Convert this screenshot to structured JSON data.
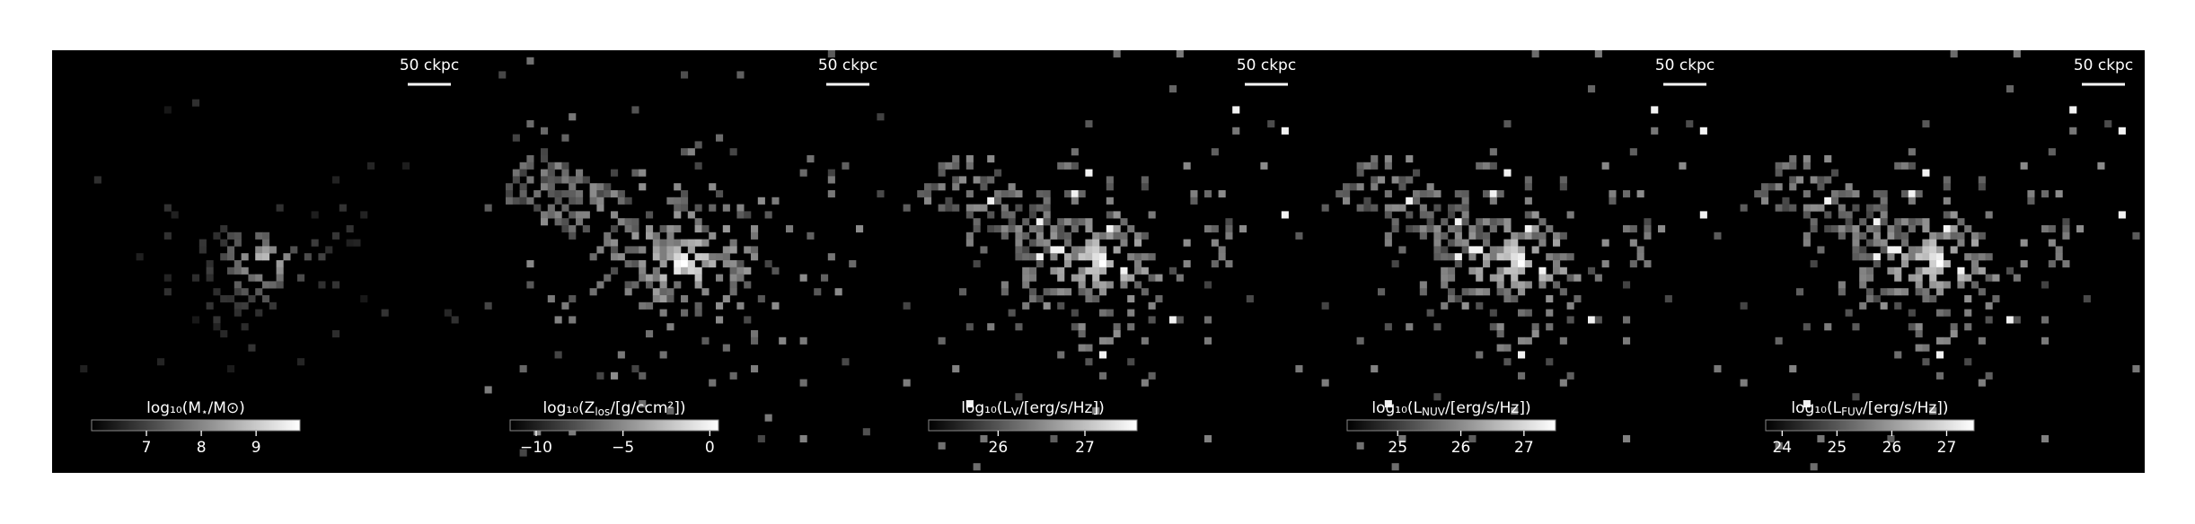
{
  "chart_data": [
    {
      "type": "image",
      "scale_label": "50 ckpc",
      "colorbar_label": {
        "text": "log₁₀(M",
        "sub": "⋆",
        "tail": "/M⊙)"
      },
      "clim": [
        6.0,
        9.8
      ],
      "cticks": [
        7,
        8,
        9
      ],
      "stream": false
    },
    {
      "type": "image",
      "scale_label": "50 ckpc",
      "colorbar_label": {
        "text": "log₁₀(Z",
        "sub": "los",
        "tail": "/[g/ccm²])"
      },
      "clim": [
        -11.5,
        0.5
      ],
      "cticks": [
        {
          "value": -10,
          "label": "−10"
        },
        {
          "value": -5,
          "label": "−5"
        },
        0
      ],
      "stream": true
    },
    {
      "type": "image",
      "scale_label": "50 ckpc",
      "colorbar_label": {
        "text": "log₁₀(L",
        "sub": "V",
        "tail": "/[erg/s/Hz])"
      },
      "clim": [
        25.2,
        27.6
      ],
      "cticks": [
        26,
        27
      ],
      "stream": true
    },
    {
      "type": "image",
      "scale_label": "50 ckpc",
      "colorbar_label": {
        "text": "log₁₀(L",
        "sub": "NUV",
        "tail": "/[erg/s/Hz])"
      },
      "clim": [
        24.2,
        27.5
      ],
      "cticks": [
        25,
        26,
        27
      ],
      "stream": true
    },
    {
      "type": "image",
      "scale_label": "50 ckpc",
      "colorbar_label": {
        "text": "log₁₀(L",
        "sub": "FUV",
        "tail": "/[erg/s/Hz])"
      },
      "clim": [
        23.7,
        27.5
      ],
      "cticks": [
        24,
        25,
        26,
        27
      ],
      "stream": true
    }
  ]
}
